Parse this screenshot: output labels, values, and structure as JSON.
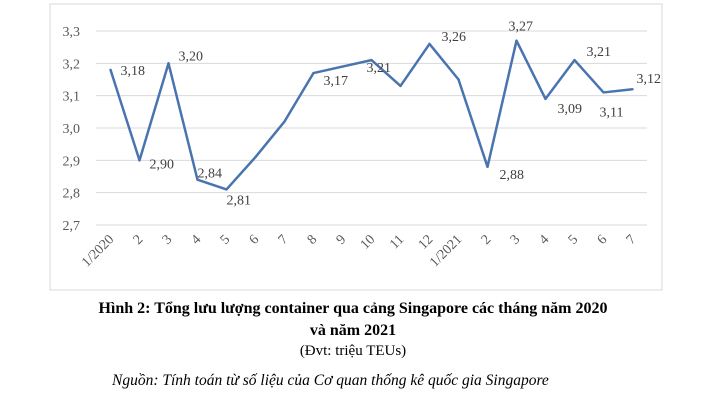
{
  "chart_data": {
    "type": "line",
    "categories": [
      "1/2020",
      "2",
      "3",
      "4",
      "5",
      "6",
      "7",
      "8",
      "9",
      "10",
      "11",
      "12",
      "1/2021",
      "2",
      "3",
      "4",
      "5",
      "6",
      "7"
    ],
    "values": [
      3.18,
      2.9,
      3.2,
      2.84,
      2.81,
      2.91,
      3.02,
      3.17,
      3.19,
      3.21,
      3.13,
      3.26,
      3.15,
      2.88,
      3.27,
      3.09,
      3.21,
      3.11,
      3.12
    ],
    "data_labels": [
      "3,18",
      "2,90",
      "3,20",
      "2,84",
      "2,81",
      "",
      "",
      "3,17",
      "",
      "3,21",
      "",
      "3,26",
      "",
      "2,88",
      "3,27",
      "3,09",
      "3,21",
      "3,11",
      "3,12"
    ],
    "yticks": [
      "2,7",
      "2,8",
      "2,9",
      "3,0",
      "3,1",
      "3,2",
      "3,3"
    ],
    "ylim": [
      2.7,
      3.3
    ],
    "grid": true,
    "line_color": "#4a74b0",
    "title": "Hình 2: Tổng lưu lượng container qua cảng Singapore các tháng năm 2020",
    "title_line2": "và năm 2021",
    "unit": "(Đvt: triệu TEUs)",
    "source": "Nguồn: Tính toán từ số liệu của Cơ quan thống kê quốc gia Singapore"
  }
}
